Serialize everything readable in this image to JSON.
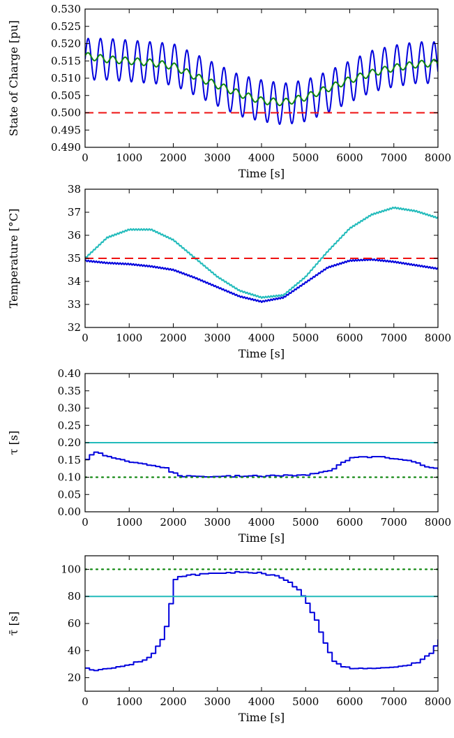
{
  "chart_data": [
    {
      "type": "line",
      "ylabel": "State of Charge [pu]",
      "xlabel": "Time [s]",
      "xlim": [
        0,
        8000
      ],
      "ylim": [
        0.49,
        0.53
      ],
      "xticks": [
        0,
        1000,
        2000,
        3000,
        4000,
        5000,
        6000,
        7000,
        8000
      ],
      "xtick_labels": [
        "0",
        "1000",
        "2000",
        "3000",
        "4000",
        "5000",
        "6000",
        "7000",
        "8000"
      ],
      "yticks": [
        0.49,
        0.495,
        0.5,
        0.505,
        0.51,
        0.515,
        0.52,
        0.525,
        0.53
      ],
      "ytick_labels": [
        "0.490",
        "0.495",
        "0.500",
        "0.505",
        "0.510",
        "0.515",
        "0.520",
        "0.525",
        "0.530"
      ],
      "series": [
        {
          "color": "#0000dd",
          "style": "solid",
          "oscillation_amplitude": 0.006,
          "oscillation_period": 280,
          "x": [
            0,
            500,
            1000,
            1500,
            2000,
            2500,
            3000,
            3500,
            4000,
            4500,
            5000,
            5500,
            6000,
            6500,
            7000,
            7500,
            8000
          ],
          "y": [
            0.5155,
            0.5155,
            0.515,
            0.5145,
            0.514,
            0.511,
            0.508,
            0.505,
            0.5035,
            0.5025,
            0.5035,
            0.506,
            0.509,
            0.512,
            0.5135,
            0.5145,
            0.5145
          ]
        },
        {
          "color": "#118811",
          "style": "solid",
          "oscillation_amplitude": 0.001,
          "oscillation_period": 280,
          "x": [
            0,
            500,
            1000,
            1500,
            2000,
            2500,
            3000,
            3500,
            4000,
            4500,
            5000,
            5500,
            6000,
            6500,
            7000,
            7500,
            8000
          ],
          "y": [
            0.5165,
            0.5155,
            0.515,
            0.5145,
            0.5135,
            0.5105,
            0.508,
            0.5055,
            0.5035,
            0.503,
            0.5045,
            0.507,
            0.5095,
            0.5115,
            0.513,
            0.514,
            0.5145
          ]
        },
        {
          "color": "#ee1111",
          "style": "dashed",
          "x": [
            0,
            8000
          ],
          "y": [
            0.5,
            0.5
          ]
        }
      ]
    },
    {
      "type": "line",
      "ylabel": "Temperature [°C]",
      "xlabel": "Time [s]",
      "xlim": [
        0,
        8000
      ],
      "ylim": [
        32,
        38
      ],
      "xticks": [
        0,
        1000,
        2000,
        3000,
        4000,
        5000,
        6000,
        7000,
        8000
      ],
      "xtick_labels": [
        "0",
        "1000",
        "2000",
        "3000",
        "4000",
        "5000",
        "6000",
        "7000",
        "8000"
      ],
      "yticks": [
        32,
        33,
        34,
        35,
        36,
        37,
        38
      ],
      "ytick_labels": [
        "32",
        "33",
        "34",
        "35",
        "36",
        "37",
        "38"
      ],
      "series": [
        {
          "color": "#22bbbb",
          "style": "solid",
          "oscillation_amplitude": 0.03,
          "oscillation_period": 60,
          "x": [
            0,
            500,
            1000,
            1500,
            2000,
            2500,
            3000,
            3500,
            4000,
            4500,
            5000,
            5500,
            6000,
            6500,
            7000,
            7500,
            8000
          ],
          "y": [
            35.0,
            35.9,
            36.25,
            36.25,
            35.8,
            35.0,
            34.2,
            33.6,
            33.3,
            33.4,
            34.2,
            35.3,
            36.3,
            36.9,
            37.2,
            37.05,
            36.75
          ]
        },
        {
          "color": "#0000dd",
          "style": "solid",
          "oscillation_amplitude": 0.03,
          "oscillation_period": 60,
          "x": [
            0,
            500,
            1000,
            1500,
            2000,
            2500,
            3000,
            3500,
            4000,
            4500,
            5000,
            5500,
            6000,
            6500,
            7000,
            7500,
            8000
          ],
          "y": [
            34.9,
            34.8,
            34.75,
            34.65,
            34.5,
            34.15,
            33.75,
            33.35,
            33.12,
            33.3,
            33.95,
            34.6,
            34.9,
            34.95,
            34.85,
            34.7,
            34.55
          ]
        },
        {
          "color": "#ee1111",
          "style": "dashed",
          "x": [
            0,
            8000
          ],
          "y": [
            35,
            35
          ]
        }
      ]
    },
    {
      "type": "line",
      "ylabel": "τ [s]",
      "xlabel": "Time [s]",
      "xlim": [
        0,
        8000
      ],
      "ylim": [
        0,
        0.4
      ],
      "xticks": [
        0,
        1000,
        2000,
        3000,
        4000,
        5000,
        6000,
        7000,
        8000
      ],
      "xtick_labels": [
        "0",
        "1000",
        "2000",
        "3000",
        "4000",
        "5000",
        "6000",
        "7000",
        "8000"
      ],
      "yticks": [
        0,
        0.05,
        0.1,
        0.15,
        0.2,
        0.25,
        0.3,
        0.35,
        0.4
      ],
      "ytick_labels": [
        "0.00",
        "0.05",
        "0.10",
        "0.15",
        "0.20",
        "0.25",
        "0.30",
        "0.35",
        "0.40"
      ],
      "series": [
        {
          "color": "#0000dd",
          "style": "steps",
          "step_width": 100,
          "x": [
            0,
            150,
            500,
            1000,
            1500,
            1800,
            2000,
            2100,
            2500,
            3000,
            3500,
            4000,
            4500,
            5000,
            5300,
            5600,
            5800,
            6000,
            6500,
            7000,
            7500,
            8000
          ],
          "y": [
            0.15,
            0.175,
            0.16,
            0.145,
            0.135,
            0.125,
            0.11,
            0.102,
            0.102,
            0.102,
            0.103,
            0.104,
            0.105,
            0.106,
            0.112,
            0.125,
            0.145,
            0.155,
            0.16,
            0.155,
            0.14,
            0.12
          ]
        },
        {
          "color": "#22bbbb",
          "style": "solid",
          "x": [
            0,
            8000
          ],
          "y": [
            0.2,
            0.2
          ]
        },
        {
          "color": "#118811",
          "style": "dotted",
          "x": [
            0,
            8000
          ],
          "y": [
            0.1,
            0.1
          ]
        }
      ]
    },
    {
      "type": "line",
      "ylabel": "τ̄ [s]",
      "xlabel": "Time [s]",
      "xlim": [
        0,
        8000
      ],
      "ylim": [
        10,
        110
      ],
      "xticks": [
        0,
        1000,
        2000,
        3000,
        4000,
        5000,
        6000,
        7000,
        8000
      ],
      "xtick_labels": [
        "0",
        "1000",
        "2000",
        "3000",
        "4000",
        "5000",
        "6000",
        "7000",
        "8000"
      ],
      "yticks": [
        20,
        40,
        60,
        80,
        100
      ],
      "ytick_labels": [
        "20",
        "40",
        "60",
        "80",
        "100"
      ],
      "series": [
        {
          "color": "#0000dd",
          "style": "steps",
          "step_width": 100,
          "x": [
            0,
            200,
            500,
            1000,
            1300,
            1500,
            1700,
            1800,
            1900,
            2000,
            2100,
            2500,
            3000,
            3500,
            4000,
            4300,
            4600,
            4800,
            5000,
            5200,
            5400,
            5600,
            5800,
            6000,
            6500,
            7000,
            7500,
            7800,
            8000
          ],
          "y": [
            27,
            25,
            27,
            30,
            33,
            38,
            48,
            58,
            75,
            92,
            95,
            96,
            97,
            98,
            97,
            95,
            90,
            85,
            75,
            62,
            45,
            32,
            28,
            27,
            27,
            28,
            31,
            38,
            48
          ]
        },
        {
          "color": "#22bbbb",
          "style": "solid",
          "x": [
            0,
            8000
          ],
          "y": [
            80,
            80
          ]
        },
        {
          "color": "#118811",
          "style": "dotted",
          "x": [
            0,
            8000
          ],
          "y": [
            100,
            100
          ]
        }
      ]
    }
  ]
}
